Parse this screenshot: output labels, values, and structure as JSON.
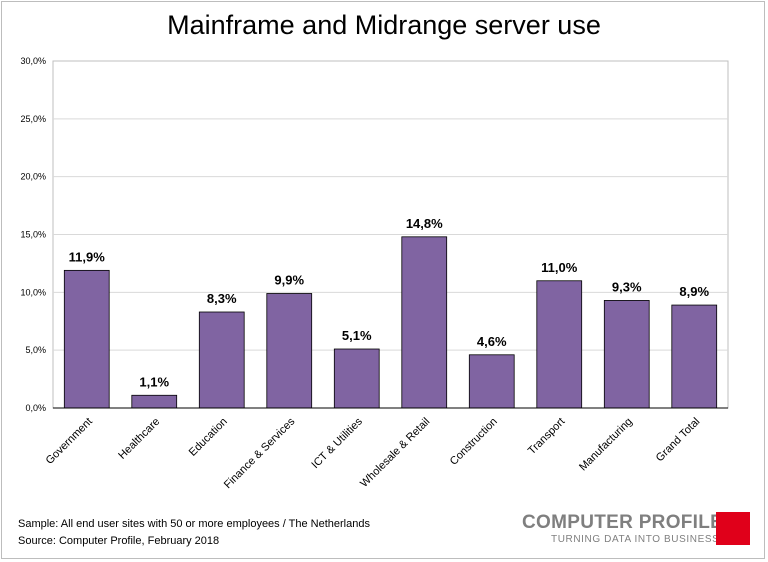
{
  "title": "Mainframe and Midrange server use",
  "chart_data": {
    "type": "bar",
    "title": "Mainframe and Midrange server use",
    "xlabel": "",
    "ylabel": "",
    "ylim": [
      0,
      30
    ],
    "yticks": [
      "0,0%",
      "5,0%",
      "10,0%",
      "15,0%",
      "20,0%",
      "25,0%",
      "30,0%"
    ],
    "categories": [
      "Government",
      "Healthcare",
      "Education",
      "Finance & Services",
      "ICT & Utilities",
      "Wholesale & Retail",
      "Construction",
      "Transport",
      "Manufacturing",
      "Grand Total"
    ],
    "values": [
      11.9,
      1.1,
      8.3,
      9.9,
      5.1,
      14.8,
      4.6,
      11.0,
      9.3,
      8.9
    ],
    "value_labels": [
      "11,9%",
      "1,1%",
      "8,3%",
      "9,9%",
      "5,1%",
      "14,8%",
      "4,6%",
      "11,0%",
      "9,3%",
      "8,9%"
    ],
    "bar_color": "#8064a2",
    "grid": true
  },
  "footer": {
    "sample": "Sample: All end user sites with 50 or more employees / The Netherlands",
    "source": "Source: Computer Profile, February 2018"
  },
  "logo": {
    "name": "COMPUTER PROFILE",
    "tagline": "TURNING DATA INTO BUSINESS",
    "accent": "#e0001a"
  }
}
